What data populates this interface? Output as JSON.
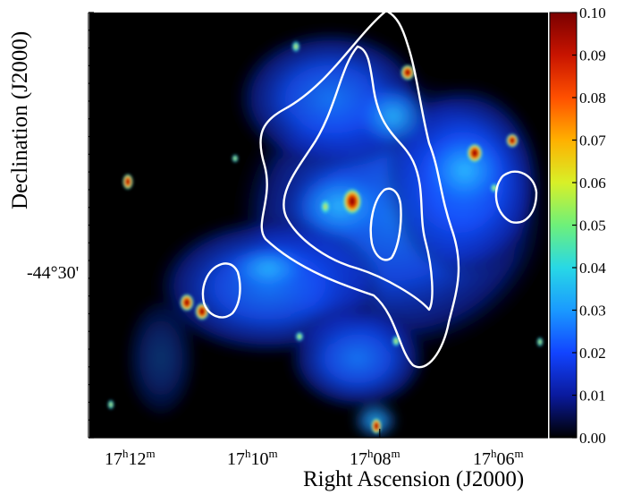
{
  "chart_data": {
    "type": "heatmap",
    "title": "",
    "xlabel": "Right Ascension (J2000)",
    "ylabel": "Declination (J2000)",
    "x_ticks": [
      {
        "h": "17",
        "m": "12"
      },
      {
        "h": "17",
        "m": "10"
      },
      {
        "h": "17",
        "m": "08"
      },
      {
        "h": "17",
        "m": "06"
      }
    ],
    "y_ticks": [
      "-44°30'"
    ],
    "colorbar": {
      "min": 0.0,
      "max": 0.1,
      "ticks": [
        "0.10",
        "0.09",
        "0.08",
        "0.07",
        "0.06",
        "0.05",
        "0.04",
        "0.03",
        "0.02",
        "0.01",
        "0.00"
      ],
      "colors": [
        "#000000",
        "#0a1a9e",
        "#1244ff",
        "#1a9aff",
        "#28d8e6",
        "#6ef07a",
        "#d8f028",
        "#ffb000",
        "#ff5000",
        "#c81400",
        "#7a0000"
      ]
    },
    "contour_levels": 3,
    "contour_color": "#ffffff"
  }
}
